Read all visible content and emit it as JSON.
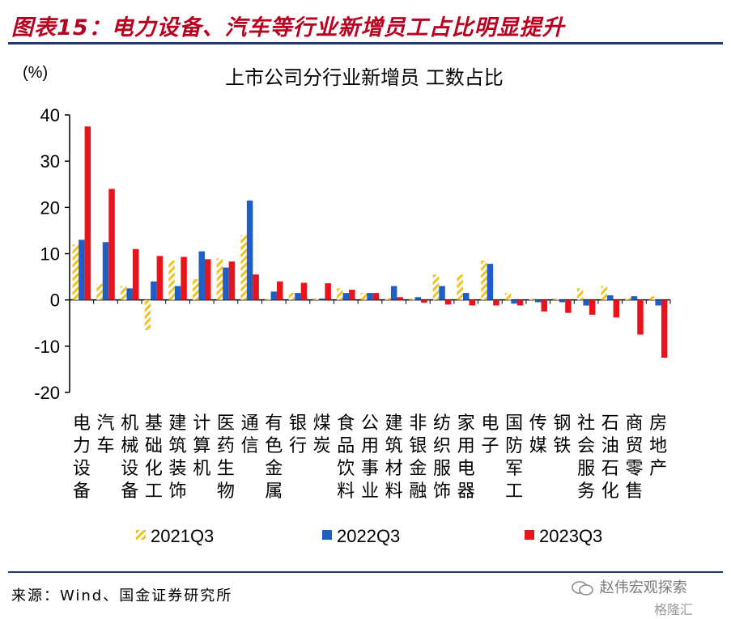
{
  "figure": {
    "title": "图表15：电力设备、汽车等行业新增员工占比明显提升",
    "source": "来源：Wind、国金证券研究所",
    "watermark": "赵伟宏观探索",
    "watermark2": "格隆汇"
  },
  "colors": {
    "title_red": "#b8001f",
    "rule_blue": "#1f3b70",
    "series_2021": "#f2c21b",
    "series_2022": "#1f5fc5",
    "series_2023": "#e8141c"
  },
  "chart_data": {
    "type": "bar",
    "title": "上市公司分行业新增员 工数占比",
    "ylabel": "(%)",
    "ylim": [
      -20,
      40
    ],
    "yticks": [
      -20,
      -10,
      0,
      10,
      20,
      30,
      40
    ],
    "grid": false,
    "legend_position": "bottom",
    "categories": [
      "电力设备",
      "汽车",
      "机械设备",
      "基础化工",
      "建筑装饰",
      "计算机",
      "医药生物",
      "通信",
      "有色金属",
      "银行",
      "煤炭",
      "食品饮料",
      "公用事业",
      "建筑材料",
      "非银金融",
      "纺织服饰",
      "家用电器",
      "电子",
      "国防军工",
      "传媒",
      "钢铁",
      "社会服务",
      "石油石化",
      "商贸零售",
      "房地产"
    ],
    "series": [
      {
        "name": "2021Q3",
        "values": [
          12,
          3.5,
          3,
          -6.5,
          8.5,
          4.5,
          9,
          14,
          0.2,
          1.5,
          0.3,
          2.5,
          1.5,
          0.5,
          0.3,
          5.5,
          5.5,
          8.5,
          1.5,
          0.3,
          0.3,
          2.5,
          3,
          0.5,
          0.8
        ]
      },
      {
        "name": "2022Q3",
        "values": [
          13,
          12.5,
          2.5,
          4,
          3,
          10.5,
          7,
          21.5,
          1.8,
          1.5,
          0.3,
          1.5,
          1.5,
          3,
          0.6,
          3,
          1.5,
          7.8,
          -0.8,
          -0.5,
          -0.5,
          -1.2,
          1,
          0.8,
          -1.2
        ]
      },
      {
        "name": "2023Q3",
        "values": [
          37.5,
          24,
          11,
          9.5,
          9.3,
          8.8,
          8.3,
          5.5,
          4,
          3.7,
          3.6,
          2.2,
          1.5,
          0.6,
          -0.6,
          -1,
          -1.2,
          -1.2,
          -1.2,
          -2.5,
          -2.8,
          -3.2,
          -3.8,
          -7.5,
          -12.5
        ]
      }
    ]
  }
}
